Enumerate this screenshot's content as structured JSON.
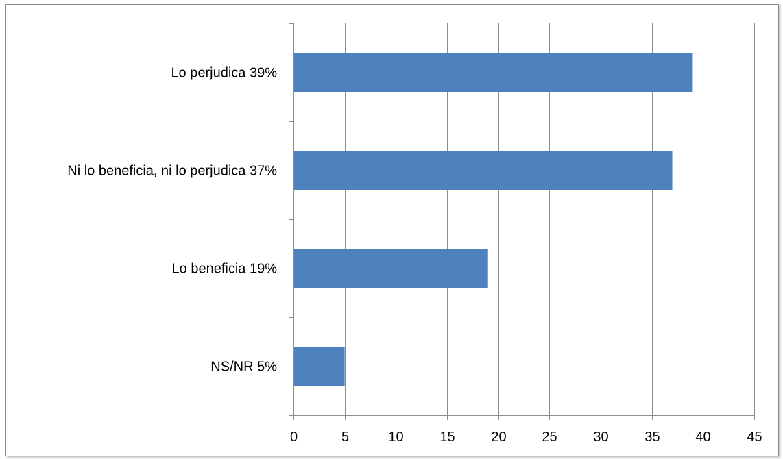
{
  "chart_data": {
    "type": "bar",
    "orientation": "horizontal",
    "categories": [
      "Lo perjudica  39%",
      "Ni lo beneficia, ni lo perjudica  37%",
      "Lo beneficia  19%",
      "NS/NR  5%"
    ],
    "values": [
      39,
      37,
      19,
      5
    ],
    "xlim": [
      0,
      45
    ],
    "xticks": [
      0,
      5,
      10,
      15,
      20,
      25,
      30,
      35,
      40,
      45
    ],
    "title": "",
    "xlabel": "",
    "ylabel": "",
    "grid": "vertical",
    "legend": "none",
    "bar_color": "#4f81bd",
    "grid_color": "#8c8c8c",
    "axis_color": "#8c8c8c"
  }
}
